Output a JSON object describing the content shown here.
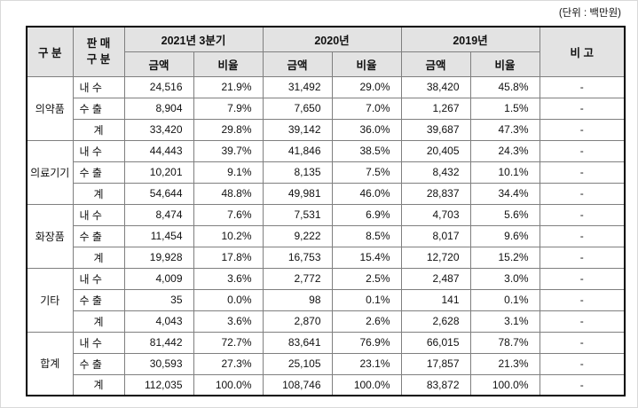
{
  "unit_label": "(단위 : 백만원)",
  "colors": {
    "header_bg": "#e3e3e3",
    "border_inner": "#7f7f7f",
    "border_outer": "#000000",
    "text": "#111111"
  },
  "table": {
    "header": {
      "category": "구 분",
      "sales_type_line1": "판 매",
      "sales_type_line2": "구 분",
      "periods": [
        "2021년 3분기",
        "2020년",
        "2019년"
      ],
      "amount_label": "금액",
      "ratio_label": "비율",
      "remarks_label": "비 고"
    },
    "groups": [
      {
        "name": "의약품",
        "rows": [
          {
            "label": "내 수",
            "is_total": false,
            "cells": [
              "24,516",
              "21.9%",
              "31,492",
              "29.0%",
              "38,420",
              "45.8%"
            ],
            "remark": "-"
          },
          {
            "label": "수 출",
            "is_total": false,
            "cells": [
              "8,904",
              "7.9%",
              "7,650",
              "7.0%",
              "1,267",
              "1.5%"
            ],
            "remark": "-"
          },
          {
            "label": "계",
            "is_total": true,
            "cells": [
              "33,420",
              "29.8%",
              "39,142",
              "36.0%",
              "39,687",
              "47.3%"
            ],
            "remark": "-"
          }
        ]
      },
      {
        "name": "의료기기",
        "rows": [
          {
            "label": "내 수",
            "is_total": false,
            "cells": [
              "44,443",
              "39.7%",
              "41,846",
              "38.5%",
              "20,405",
              "24.3%"
            ],
            "remark": "-"
          },
          {
            "label": "수 출",
            "is_total": false,
            "cells": [
              "10,201",
              "9.1%",
              "8,135",
              "7.5%",
              "8,432",
              "10.1%"
            ],
            "remark": "-"
          },
          {
            "label": "계",
            "is_total": true,
            "cells": [
              "54,644",
              "48.8%",
              "49,981",
              "46.0%",
              "28,837",
              "34.4%"
            ],
            "remark": "-"
          }
        ]
      },
      {
        "name": "화장품",
        "rows": [
          {
            "label": "내 수",
            "is_total": false,
            "cells": [
              "8,474",
              "7.6%",
              "7,531",
              "6.9%",
              "4,703",
              "5.6%"
            ],
            "remark": "-"
          },
          {
            "label": "수 출",
            "is_total": false,
            "cells": [
              "11,454",
              "10.2%",
              "9,222",
              "8.5%",
              "8,017",
              "9.6%"
            ],
            "remark": "-"
          },
          {
            "label": "계",
            "is_total": true,
            "cells": [
              "19,928",
              "17.8%",
              "16,753",
              "15.4%",
              "12,720",
              "15.2%"
            ],
            "remark": "-"
          }
        ]
      },
      {
        "name": "기타",
        "rows": [
          {
            "label": "내 수",
            "is_total": false,
            "cells": [
              "4,009",
              "3.6%",
              "2,772",
              "2.5%",
              "2,487",
              "3.0%"
            ],
            "remark": "-"
          },
          {
            "label": "수 출",
            "is_total": false,
            "cells": [
              "35",
              "0.0%",
              "98",
              "0.1%",
              "141",
              "0.1%"
            ],
            "remark": "-"
          },
          {
            "label": "계",
            "is_total": true,
            "cells": [
              "4,043",
              "3.6%",
              "2,870",
              "2.6%",
              "2,628",
              "3.1%"
            ],
            "remark": "-"
          }
        ]
      },
      {
        "name": "합계",
        "rows": [
          {
            "label": "내 수",
            "is_total": false,
            "cells": [
              "81,442",
              "72.7%",
              "83,641",
              "76.9%",
              "66,015",
              "78.7%"
            ],
            "remark": "-"
          },
          {
            "label": "수 출",
            "is_total": false,
            "cells": [
              "30,593",
              "27.3%",
              "25,105",
              "23.1%",
              "17,857",
              "21.3%"
            ],
            "remark": "-"
          },
          {
            "label": "계",
            "is_total": true,
            "cells": [
              "112,035",
              "100.0%",
              "108,746",
              "100.0%",
              "83,872",
              "100.0%"
            ],
            "remark": "-"
          }
        ]
      }
    ]
  }
}
